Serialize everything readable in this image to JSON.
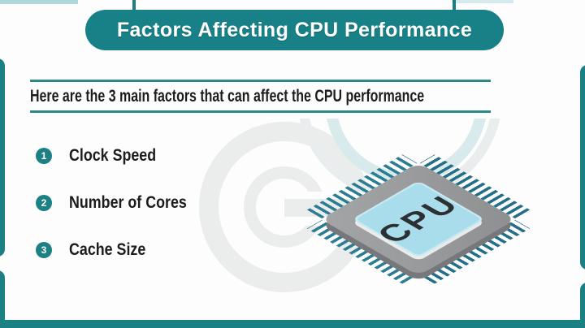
{
  "banner": {
    "title": "Factors Affecting CPU Performance"
  },
  "subtitle": {
    "text": "Here are the 3 main factors that can affect the CPU performance"
  },
  "factors": [
    {
      "number": "1",
      "label": "Clock Speed"
    },
    {
      "number": "2",
      "label": "Number of Cores"
    },
    {
      "number": "3",
      "label": "Cache Size"
    }
  ],
  "chip": {
    "label": "CPU"
  },
  "colors": {
    "teal_primary": "#17818a",
    "teal_bars": "#1b8084",
    "text_dark": "#1c1c1c",
    "chip_top_blue": "#a9ddeb",
    "chip_body_gray": "#98999b",
    "pin_teal": "#2a7d92",
    "watermark_gray": "#ebecec"
  }
}
